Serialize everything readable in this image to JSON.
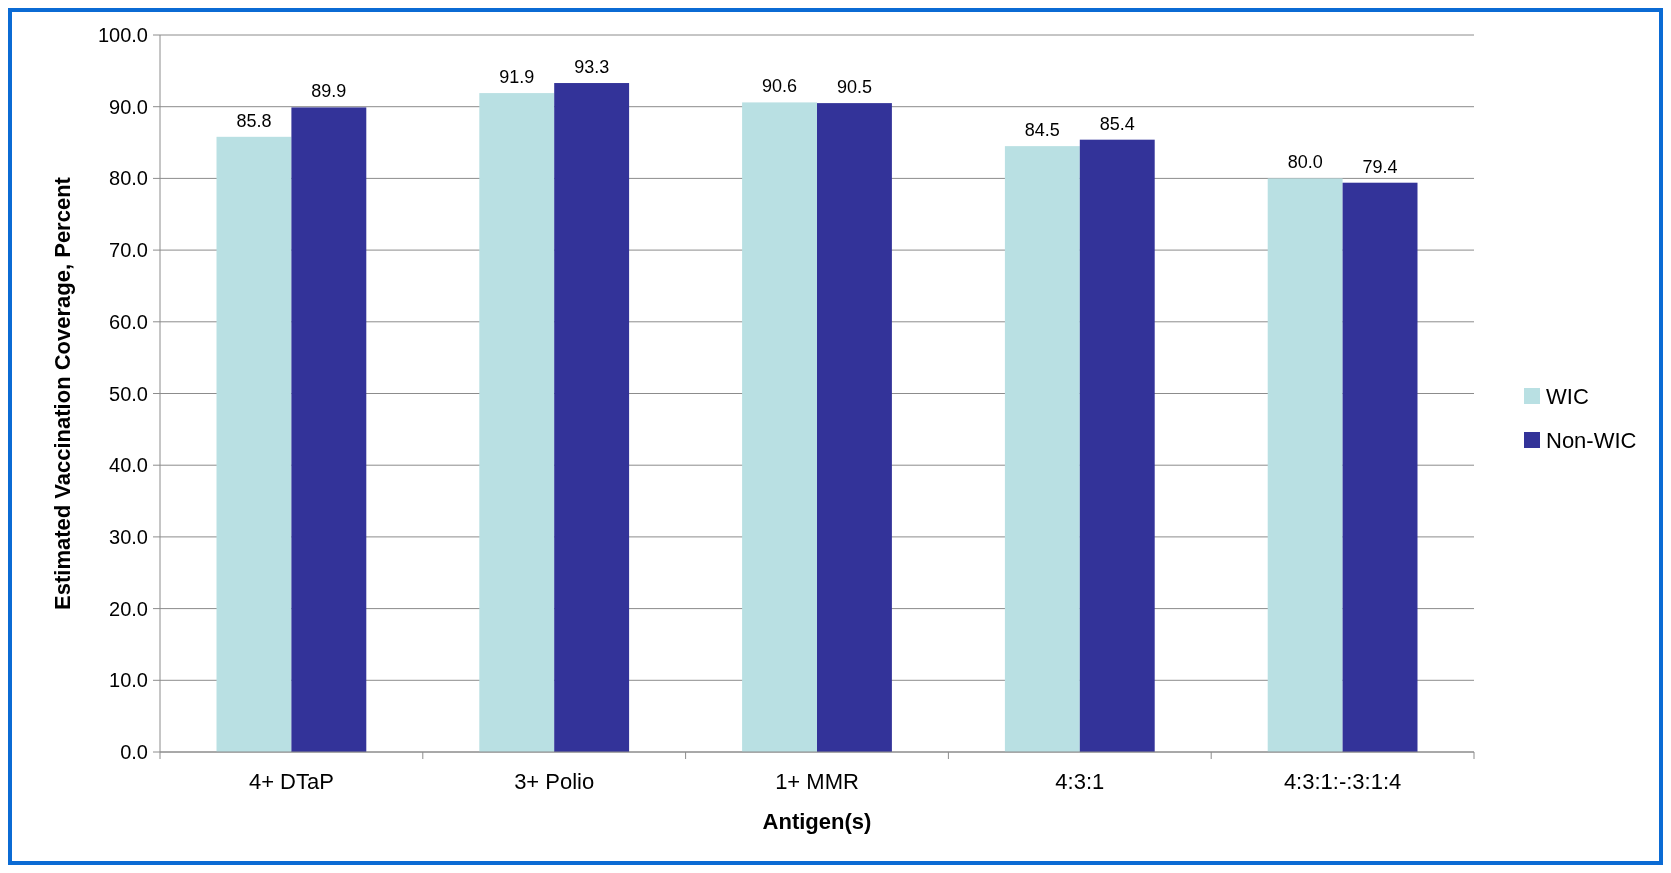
{
  "chart_data": {
    "type": "bar",
    "xlabel": "Antigen(s)",
    "ylabel": "Estimated Vaccination Coverage, Percent",
    "categories": [
      "4+ DTaP",
      "3+ Polio",
      "1+ MMR",
      "4:3:1",
      "4:3:1:-:3:1:4"
    ],
    "series": [
      {
        "name": "WIC",
        "color": "#b9e0e3",
        "values": [
          85.8,
          91.9,
          90.6,
          84.5,
          80.0
        ],
        "value_labels": [
          "85.8",
          "91.9",
          "90.6",
          "84.5",
          "80.0"
        ]
      },
      {
        "name": "Non-WIC",
        "color": "#333399",
        "values": [
          89.9,
          93.3,
          90.5,
          85.4,
          79.4
        ],
        "value_labels": [
          "89.9",
          "93.3",
          "90.5",
          "85.4",
          "79.4"
        ]
      }
    ],
    "ylim": [
      0,
      100
    ],
    "yticks": [
      {
        "value": 0,
        "label": "0.0"
      },
      {
        "value": 10,
        "label": "10.0"
      },
      {
        "value": 20,
        "label": "20.0"
      },
      {
        "value": 30,
        "label": "30.0"
      },
      {
        "value": 40,
        "label": "40.0"
      },
      {
        "value": 50,
        "label": "50.0"
      },
      {
        "value": 60,
        "label": "60.0"
      },
      {
        "value": 70,
        "label": "70.0"
      },
      {
        "value": 80,
        "label": "80.0"
      },
      {
        "value": 90,
        "label": "90.0"
      },
      {
        "value": 100,
        "label": "100.0"
      }
    ],
    "grid": "y",
    "legend": "right"
  }
}
